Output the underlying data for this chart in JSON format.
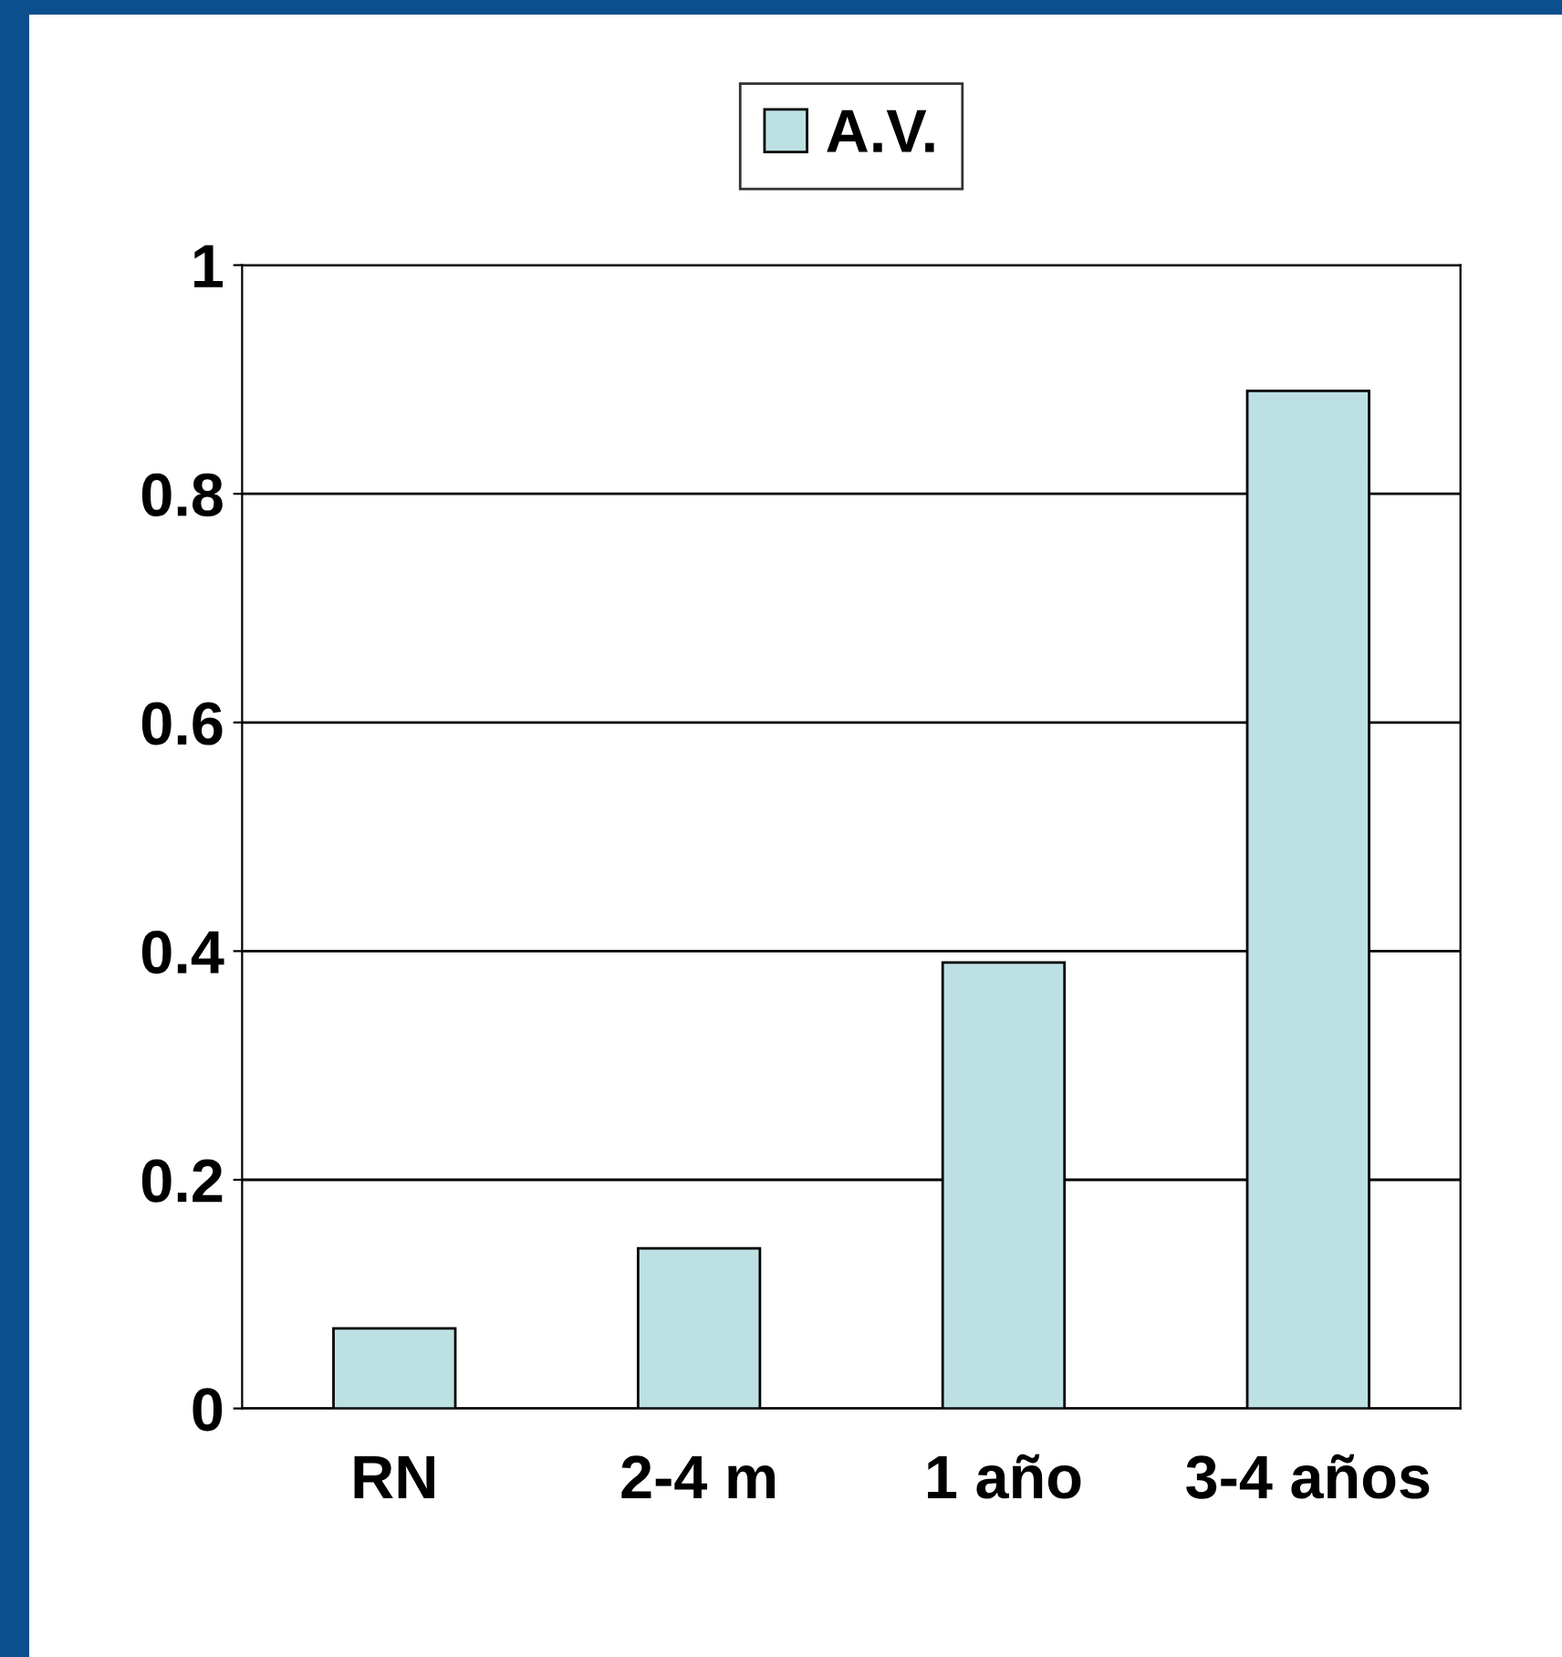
{
  "chart_data": {
    "type": "bar",
    "categories": [
      "RN",
      "2-4 m",
      "1 año",
      "3-4 años"
    ],
    "series": [
      {
        "name": "A.V.",
        "color": "#bde1e3",
        "values": [
          0.07,
          0.14,
          0.39,
          0.89
        ]
      }
    ],
    "ylim": [
      0,
      1
    ],
    "yticks": [
      0,
      0.2,
      0.4,
      0.6,
      0.8,
      1
    ],
    "grid": "y",
    "legend": "top"
  }
}
